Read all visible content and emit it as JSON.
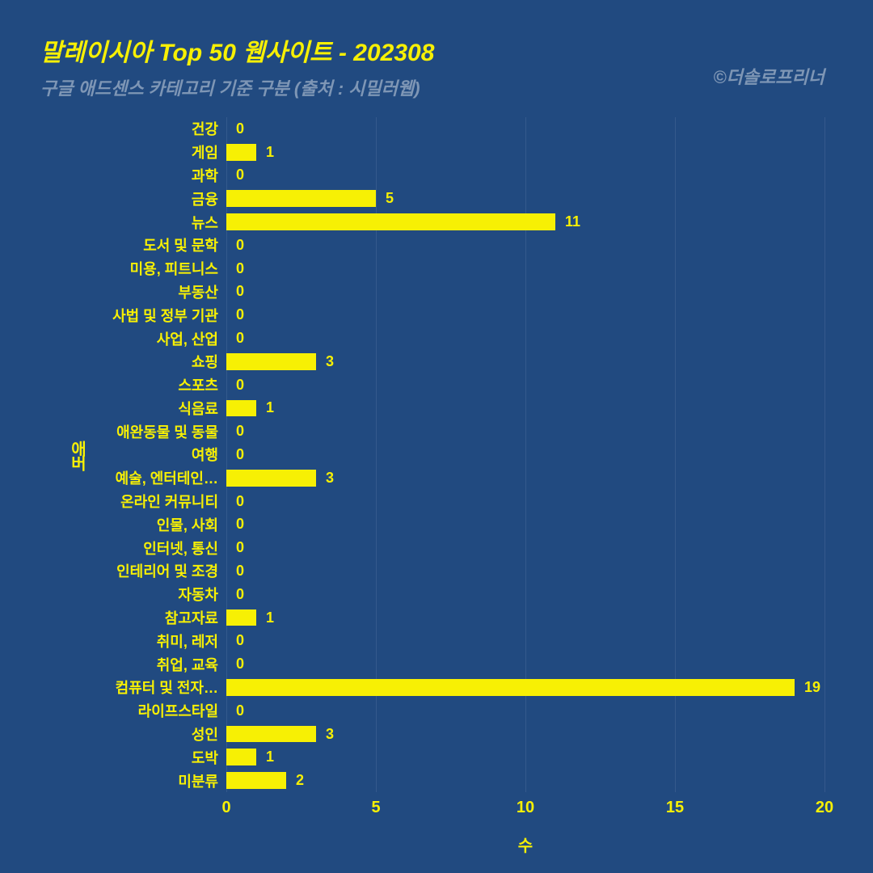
{
  "title": "말레이시아 Top 50 웹사이트 - 202308",
  "subtitle": "구글 애드센스 카테고리 기준 구분 (출처 : 시밀러웹)",
  "credit": "©더솔로프리너",
  "colors": {
    "background": "#214a80",
    "bar": "#f7f004",
    "title_text": "#f7f004",
    "subtitle_text": "#7e96b5",
    "credit_text": "#7e96b5",
    "axis_text": "#f7f004",
    "gridline": "#34598c"
  },
  "typography": {
    "title_fontsize": 30,
    "subtitle_fontsize": 22,
    "credit_fontsize": 22,
    "bar_label_fontsize": 18,
    "bar_value_fontsize": 18,
    "tick_fontsize": 20,
    "axis_label_fontsize": 20
  },
  "chart": {
    "type": "bar",
    "orientation": "horizontal",
    "x_axis_label": "수",
    "y_axis_label": "애버",
    "xlim": [
      0,
      20
    ],
    "xticks": [
      0,
      5,
      10,
      15,
      20
    ],
    "bar_height_ratio": 0.72,
    "categories": [
      "건강",
      "게임",
      "과학",
      "금융",
      "뉴스",
      "도서 및 문학",
      "미용, 피트니스",
      "부동산",
      "사법 및 정부 기관",
      "사업, 산업",
      "쇼핑",
      "스포츠",
      "식음료",
      "애완동물 및 동물",
      "여행",
      "예술, 엔터테인…",
      "온라인 커뮤니티",
      "인물, 사회",
      "인터넷, 통신",
      "인테리어 및 조경",
      "자동차",
      "참고자료",
      "취미, 레저",
      "취업, 교육",
      "컴퓨터 및 전자…",
      "라이프스타일",
      "성인",
      "도박",
      "미분류"
    ],
    "values": [
      0,
      1,
      0,
      5,
      11,
      0,
      0,
      0,
      0,
      0,
      3,
      0,
      1,
      0,
      0,
      3,
      0,
      0,
      0,
      0,
      0,
      1,
      0,
      0,
      19,
      0,
      3,
      1,
      2
    ]
  }
}
